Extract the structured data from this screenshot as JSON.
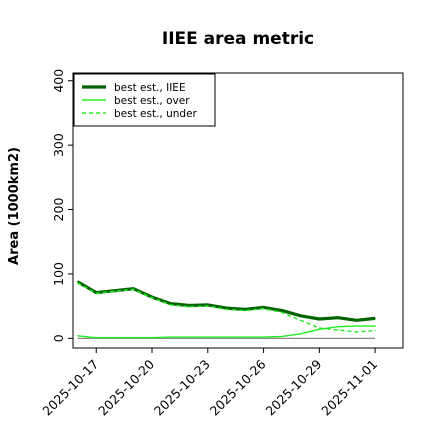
{
  "chart_data": {
    "type": "line",
    "title": "IIEE area metric",
    "xlabel": "",
    "ylabel": "Area (1000km2)",
    "x": [
      "2025-10-16",
      "2025-10-17",
      "2025-10-18",
      "2025-10-19",
      "2025-10-20",
      "2025-10-21",
      "2025-10-22",
      "2025-10-23",
      "2025-10-24",
      "2025-10-25",
      "2025-10-26",
      "2025-10-27",
      "2025-10-28",
      "2025-10-29",
      "2025-10-30",
      "2025-10-31",
      "2025-11-01"
    ],
    "xticks": [
      "2025-10-17",
      "2025-10-20",
      "2025-10-23",
      "2025-10-26",
      "2025-10-29",
      "2025-11-01"
    ],
    "yticks": [
      0,
      100,
      200,
      300,
      400
    ],
    "xlim": [
      "2025-10-15T18:00",
      "2025-11-02T12:00"
    ],
    "ylim": [
      -15,
      412
    ],
    "grid": false,
    "legend_position": "top-left",
    "baseline": 0,
    "series": [
      {
        "name": "best est., IIEE",
        "color": "#006400",
        "style": "solid",
        "width": 3.2,
        "values": [
          88,
          71,
          74,
          77,
          64,
          54,
          51,
          52,
          47,
          45,
          48,
          43,
          35,
          30,
          32,
          28,
          31
        ]
      },
      {
        "name": "best est., over",
        "color": "#22ee22",
        "style": "solid",
        "width": 1.4,
        "values": [
          4,
          1,
          1,
          1,
          1,
          2,
          2,
          2,
          2,
          2,
          2,
          3,
          7,
          14,
          18,
          19,
          19
        ]
      },
      {
        "name": "best est., under",
        "color": "#22ee22",
        "style": "dashed",
        "width": 1.4,
        "values": [
          86,
          70,
          73,
          76,
          63,
          52,
          49,
          50,
          45,
          43,
          46,
          40,
          28,
          16,
          13,
          10,
          12
        ]
      }
    ]
  }
}
